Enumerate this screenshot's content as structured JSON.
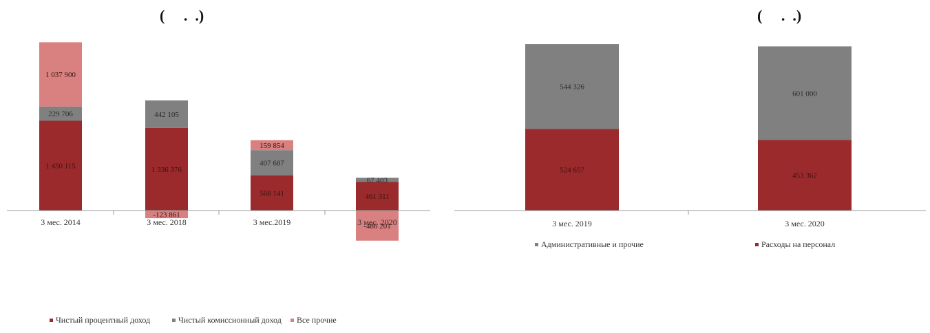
{
  "titles": {
    "left": "(     .  .)",
    "right": "(     .  .)"
  },
  "colors": {
    "interest": "#9b2a2c",
    "commission": "#808080",
    "other": "#d98080",
    "admin": "#808080",
    "staff": "#9b2a2c"
  },
  "chart_data": [
    {
      "type": "bar",
      "stacked": true,
      "categories": [
        "3 мес. 2014",
        "3 мес. 2018",
        "3 мес.2019",
        "3 мес. 2020"
      ],
      "series": [
        {
          "name": "Чистый процентный доход",
          "values": [
            1450115,
            1336376,
            568141,
            461311
          ],
          "labels": [
            "1 450 115",
            "1 336 376",
            "568 141",
            "461 311"
          ]
        },
        {
          "name": "Чистый комиссионный доход",
          "values": [
            229706,
            442105,
            407687,
            67403
          ],
          "labels": [
            "229 706",
            "442 105",
            "407 687",
            "67 403"
          ]
        },
        {
          "name": "Все прочие",
          "values": [
            1037900,
            -123861,
            159854,
            -486201
          ],
          "labels": [
            "1 037 900",
            "-123 861",
            "159 854",
            "-486 201"
          ]
        }
      ],
      "legend_position": "bottom",
      "grid": false
    },
    {
      "type": "bar",
      "stacked": true,
      "categories": [
        "3 мес. 2019",
        "3 мес. 2020"
      ],
      "series": [
        {
          "name": "Административные и прочие",
          "values": [
            544326,
            601000
          ],
          "labels": [
            "544 326",
            "601 000"
          ]
        },
        {
          "name": "Расходы на персонал",
          "values": [
            524657,
            453362
          ],
          "labels": [
            "524 657",
            "453 362"
          ]
        }
      ],
      "legend_position": "bottom",
      "grid": false
    }
  ]
}
